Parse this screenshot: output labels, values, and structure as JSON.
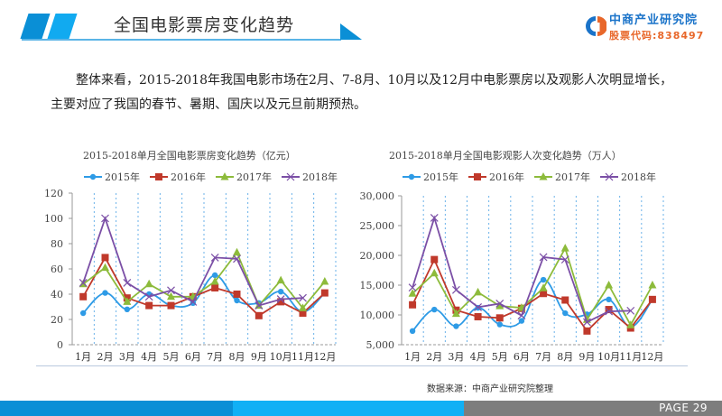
{
  "header": {
    "title": "全国电影票房变化趋势",
    "logo_name": "中商产业研究院",
    "logo_code": "股票代码:838497"
  },
  "intro": {
    "text": "整体来看，2015-2018年我国电影市场在2月、7-8月、10月以及12月中电影票房以及观影人次明显增长，主要对应了我国的春节、暑期、国庆以及元旦前期预热。"
  },
  "colors": {
    "2015": "#2e9be6",
    "2016": "#c0392b",
    "2017": "#8dbb3b",
    "2018": "#7b4fa6",
    "accent_dark": "#0a8fd6",
    "accent_light": "#11aaf0",
    "footer_gray": "#7d7d7d",
    "logo_blue": "#1a73c9",
    "logo_orange": "#e8672a"
  },
  "chart_data": [
    {
      "type": "line",
      "title": "2015-2018单月全国电影票房变化趋势（亿元）",
      "xlabel": "",
      "ylabel": "",
      "categories": [
        "1月",
        "2月",
        "3月",
        "4月",
        "5月",
        "6月",
        "7月",
        "8月",
        "9月",
        "10月",
        "11月",
        "12月"
      ],
      "yticks": [
        0,
        20,
        40,
        60,
        80,
        100,
        120
      ],
      "ylim": [
        0,
        120
      ],
      "grid": "vertical dashed",
      "legend_position": "top",
      "series": [
        {
          "name": "2015年",
          "marker": "circle",
          "values": [
            25,
            41,
            28,
            40,
            31,
            33,
            55,
            35,
            33,
            42,
            26,
            41
          ]
        },
        {
          "name": "2016年",
          "marker": "square",
          "values": [
            38,
            69,
            37,
            31,
            31,
            38,
            45,
            40,
            23,
            34,
            25,
            41
          ]
        },
        {
          "name": "2017年",
          "marker": "triangle",
          "values": [
            48,
            61,
            34,
            48,
            38,
            38,
            50,
            73,
            31,
            51,
            29,
            50
          ]
        },
        {
          "name": "2018年",
          "marker": "x",
          "values": [
            49,
            100,
            49,
            38,
            43,
            34,
            69,
            68,
            31,
            36,
            37,
            null
          ]
        }
      ]
    },
    {
      "type": "line",
      "title": "2015-2018单月全国电影观影人次变化趋势（万人）",
      "xlabel": "",
      "ylabel": "",
      "categories": [
        "1月",
        "2月",
        "3月",
        "4月",
        "5月",
        "6月",
        "7月",
        "8月",
        "9月",
        "10月",
        "11月",
        "12月"
      ],
      "yticks": [
        5000,
        10000,
        15000,
        20000,
        25000,
        30000
      ],
      "ytick_labels": [
        "5,000",
        "10,000",
        "15,000",
        "20,000",
        "25,000",
        "30,000"
      ],
      "ylim": [
        5000,
        30000
      ],
      "grid": "vertical dashed",
      "legend_position": "top",
      "series": [
        {
          "name": "2015年",
          "marker": "circle",
          "values": [
            7300,
            10900,
            8100,
            11200,
            8400,
            9000,
            15900,
            10300,
            10100,
            12600,
            8000,
            12600
          ]
        },
        {
          "name": "2016年",
          "marker": "square",
          "values": [
            11700,
            19300,
            10800,
            9700,
            9500,
            11100,
            13600,
            12500,
            7300,
            10900,
            7800,
            12600
          ]
        },
        {
          "name": "2017年",
          "marker": "triangle",
          "values": [
            13600,
            17000,
            10200,
            13800,
            11500,
            11200,
            14500,
            21200,
            9200,
            15000,
            8300,
            15000
          ]
        },
        {
          "name": "2018年",
          "marker": "x",
          "values": [
            14600,
            26300,
            14200,
            11300,
            11900,
            9900,
            19700,
            19300,
            8800,
            10600,
            10700,
            null
          ]
        }
      ]
    }
  ],
  "source": "数据来源：中商产业研究院整理",
  "footer": {
    "page_label": "PAGE  29"
  }
}
